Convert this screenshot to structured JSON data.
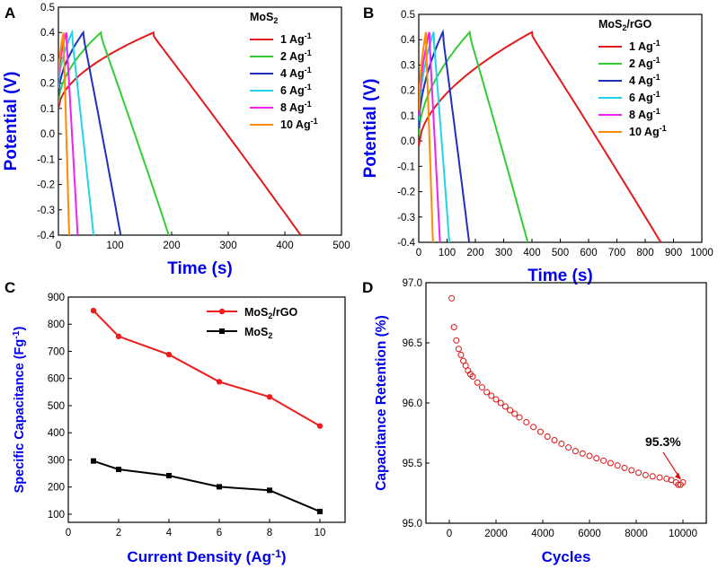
{
  "chart_data": [
    {
      "panel": "A",
      "type": "line",
      "title": "MoS2",
      "xlabel": "Time (s)",
      "ylabel": "Potential (V)",
      "xlim": [
        0,
        500
      ],
      "ylim": [
        -0.4,
        0.5
      ],
      "xticks": [
        "0",
        "100",
        "200",
        "300",
        "400",
        "500"
      ],
      "yticks": [
        "-0.4",
        "-0.3",
        "-0.2",
        "-0.1",
        "0.0",
        "0.1",
        "0.2",
        "0.3",
        "0.4",
        "0.5"
      ],
      "series": [
        {
          "name": "1 Ag-1",
          "color": "#e31a1c",
          "peak_time": 168,
          "end_time": 428,
          "start_v": 0.1,
          "peak_v": 0.4,
          "end_v": -0.4
        },
        {
          "name": "2 Ag-1",
          "color": "#33cc33",
          "peak_time": 75,
          "end_time": 195,
          "start_v": 0.12,
          "peak_v": 0.4,
          "end_v": -0.4
        },
        {
          "name": "4 Ag-1",
          "color": "#1f2fbf",
          "peak_time": 44,
          "end_time": 110,
          "start_v": 0.15,
          "peak_v": 0.4,
          "end_v": -0.4
        },
        {
          "name": "6 Ag-1",
          "color": "#22d3e6",
          "peak_time": 24,
          "end_time": 62,
          "start_v": 0.18,
          "peak_v": 0.4,
          "end_v": -0.4
        },
        {
          "name": "8 Ag-1",
          "color": "#ee22ee",
          "peak_time": 14,
          "end_time": 34,
          "start_v": 0.2,
          "peak_v": 0.4,
          "end_v": -0.4
        },
        {
          "name": "10 Ag-1",
          "color": "#ff8c00",
          "peak_time": 9,
          "end_time": 19,
          "start_v": 0.22,
          "peak_v": 0.4,
          "end_v": -0.4
        }
      ]
    },
    {
      "panel": "B",
      "type": "line",
      "title": "MoS2/rGO",
      "xlabel": "Time (s)",
      "ylabel": "Potential (V)",
      "xlim": [
        0,
        1000
      ],
      "ylim": [
        -0.4,
        0.5
      ],
      "xticks": [
        "0",
        "100",
        "200",
        "300",
        "400",
        "500",
        "600",
        "700",
        "800",
        "900",
        "1000"
      ],
      "yticks": [
        "-0.4",
        "-0.3",
        "-0.2",
        "-0.1",
        "0.0",
        "0.1",
        "0.2",
        "0.3",
        "0.4",
        "0.5"
      ],
      "series": [
        {
          "name": "1 Ag-1",
          "color": "#e31a1c",
          "peak_time": 400,
          "end_time": 855,
          "start_v": -0.02,
          "peak_v": 0.43,
          "end_v": -0.4
        },
        {
          "name": "2 Ag-1",
          "color": "#33cc33",
          "peak_time": 180,
          "end_time": 385,
          "start_v": 0.02,
          "peak_v": 0.43,
          "end_v": -0.4
        },
        {
          "name": "4 Ag-1",
          "color": "#1f2fbf",
          "peak_time": 85,
          "end_time": 178,
          "start_v": 0.05,
          "peak_v": 0.43,
          "end_v": -0.4
        },
        {
          "name": "6 Ag-1",
          "color": "#22d3e6",
          "peak_time": 52,
          "end_time": 108,
          "start_v": 0.08,
          "peak_v": 0.43,
          "end_v": -0.4
        },
        {
          "name": "8 Ag-1",
          "color": "#ee22ee",
          "peak_time": 37,
          "end_time": 75,
          "start_v": 0.1,
          "peak_v": 0.43,
          "end_v": -0.4
        },
        {
          "name": "10 Ag-1",
          "color": "#ff8c00",
          "peak_time": 25,
          "end_time": 50,
          "start_v": 0.12,
          "peak_v": 0.43,
          "end_v": -0.4
        }
      ]
    },
    {
      "panel": "C",
      "type": "line",
      "xlabel": "Current Density (Ag-1)",
      "ylabel": "Specific Capacitance (Fg-1)",
      "xlim": [
        0,
        11
      ],
      "ylim": [
        70,
        900
      ],
      "xticks": [
        "0",
        "2",
        "4",
        "6",
        "8",
        "10"
      ],
      "yticks": [
        "100",
        "200",
        "300",
        "400",
        "500",
        "600",
        "700",
        "800",
        "900"
      ],
      "x": [
        1,
        2,
        4,
        6,
        8,
        10
      ],
      "series": [
        {
          "name": "MoS2/rGO",
          "color": "#ee1c1c",
          "marker": "circle",
          "values": [
            850,
            755,
            688,
            588,
            532,
            425
          ]
        },
        {
          "name": "MoS2",
          "color": "#000000",
          "marker": "square",
          "values": [
            296,
            265,
            242,
            201,
            188,
            110
          ]
        }
      ]
    },
    {
      "panel": "D",
      "type": "scatter",
      "xlabel": "Cycles",
      "ylabel": "Capacitance Retention (%)",
      "xlim": [
        -1000,
        11000
      ],
      "ylim": [
        95.0,
        97.0
      ],
      "xticks": [
        "0",
        "2000",
        "4000",
        "6000",
        "8000",
        "10000"
      ],
      "yticks": [
        "95.0",
        "95.5",
        "96.0",
        "96.5",
        "97.0"
      ],
      "series": [
        {
          "name": "Retention",
          "color": "#dd1111",
          "marker": "open-circle",
          "x": [
            100,
            200,
            300,
            400,
            500,
            600,
            700,
            800,
            900,
            1000,
            1200,
            1400,
            1600,
            1800,
            2000,
            2200,
            2400,
            2600,
            2800,
            3000,
            3300,
            3600,
            3900,
            4200,
            4500,
            4800,
            5100,
            5400,
            5700,
            6000,
            6300,
            6600,
            6900,
            7200,
            7500,
            7800,
            8100,
            8400,
            8700,
            9000,
            9300,
            9500,
            9700,
            9800,
            9900,
            10000
          ],
          "values": [
            96.87,
            96.63,
            96.52,
            96.45,
            96.4,
            96.35,
            96.31,
            96.27,
            96.24,
            96.22,
            96.17,
            96.13,
            96.09,
            96.06,
            96.03,
            96.0,
            95.97,
            95.94,
            95.91,
            95.88,
            95.84,
            95.8,
            95.76,
            95.72,
            95.69,
            95.66,
            95.63,
            95.6,
            95.58,
            95.56,
            95.54,
            95.52,
            95.5,
            95.48,
            95.46,
            95.44,
            95.42,
            95.4,
            95.39,
            95.38,
            95.37,
            95.36,
            95.34,
            95.32,
            95.32,
            95.34
          ]
        }
      ],
      "annotation": "95.3%"
    }
  ],
  "labels": {
    "panel_a": "A",
    "panel_b": "B",
    "panel_c": "C",
    "panel_d": "D"
  }
}
